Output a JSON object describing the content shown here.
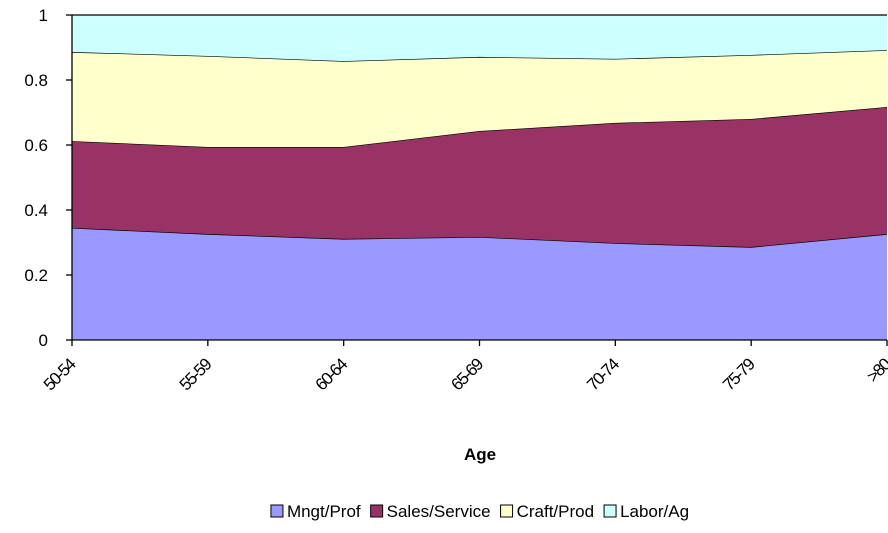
{
  "chart_data": {
    "type": "stacked-area",
    "x_label": "Age",
    "categories": [
      "50-54",
      "55-59",
      "60-64",
      "65-69",
      "70-74",
      "75-79",
      ">80"
    ],
    "series": [
      {
        "name": "Mngt/Prof",
        "color": "#9999ff",
        "values": [
          0.345,
          0.326,
          0.311,
          0.317,
          0.298,
          0.286,
          0.326
        ]
      },
      {
        "name": "Sales/Service",
        "color": "#993366",
        "values": [
          0.267,
          0.268,
          0.283,
          0.326,
          0.37,
          0.394,
          0.391
        ]
      },
      {
        "name": "Craft/Prod",
        "color": "#ffffcc",
        "values": [
          0.274,
          0.28,
          0.264,
          0.228,
          0.197,
          0.197,
          0.175
        ]
      },
      {
        "name": "Labor/Ag",
        "color": "#ccffff",
        "values": [
          0.114,
          0.126,
          0.142,
          0.129,
          0.135,
          0.123,
          0.108
        ]
      }
    ],
    "ylim": [
      0,
      1
    ],
    "yticks": [
      0,
      0.2,
      0.4,
      0.6,
      0.8,
      1
    ],
    "legend": "bottom"
  }
}
